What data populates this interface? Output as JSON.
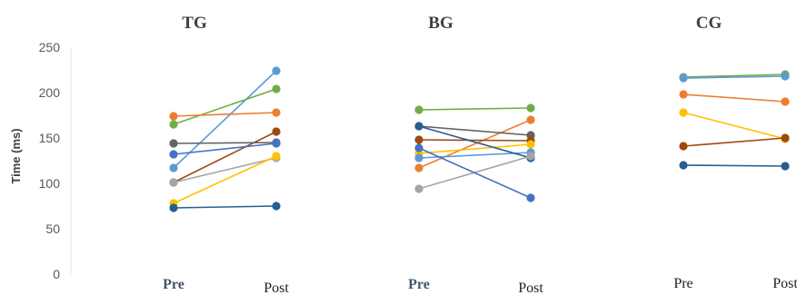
{
  "chart_data": {
    "type": "line",
    "ylabel": "Time (ms)",
    "ylim": [
      0,
      250
    ],
    "yticks": [
      "0",
      "50",
      "100",
      "150",
      "200",
      "250"
    ],
    "grid": false,
    "legend": "none",
    "panels": [
      {
        "title": "TG",
        "categories": [
          "Pre",
          "Post"
        ],
        "category_bold": [
          true,
          false
        ],
        "series": [
          {
            "color": "#5B9BD5",
            "values": [
              117,
              224
            ]
          },
          {
            "color": "#70AD47",
            "values": [
              165,
              204
            ]
          },
          {
            "color": "#ED7D31",
            "values": [
              174,
              178
            ]
          },
          {
            "color": "#9E480E",
            "values": [
              101,
              157
            ]
          },
          {
            "color": "#636363",
            "values": [
              144,
              145
            ]
          },
          {
            "color": "#4472C4",
            "values": [
              132,
              144
            ]
          },
          {
            "color": "#A5A5A5",
            "values": [
              101,
              128
            ]
          },
          {
            "color": "#FFC000",
            "values": [
              78,
              130
            ]
          },
          {
            "color": "#255E91",
            "values": [
              73,
              75
            ]
          }
        ]
      },
      {
        "title": "BG",
        "categories": [
          "Pre",
          "Post"
        ],
        "category_bold": [
          true,
          false
        ],
        "series": [
          {
            "color": "#70AD47",
            "values": [
              181,
              183
            ]
          },
          {
            "color": "#ED7D31",
            "values": [
              117,
              170
            ]
          },
          {
            "color": "#636363",
            "values": [
              163,
              153
            ]
          },
          {
            "color": "#9E480E",
            "values": [
              148,
              147
            ]
          },
          {
            "color": "#FFC000",
            "values": [
              133,
              143
            ]
          },
          {
            "color": "#5B9BD5",
            "values": [
              128,
              134
            ]
          },
          {
            "color": "#255E91",
            "values": [
              163,
              128
            ]
          },
          {
            "color": "#A5A5A5",
            "values": [
              94,
              130
            ]
          },
          {
            "color": "#4472C4",
            "values": [
              139,
              84
            ]
          }
        ]
      },
      {
        "title": "CG",
        "categories": [
          "Pre",
          "Post"
        ],
        "category_bold": [
          false,
          false
        ],
        "series": [
          {
            "color": "#70AD47",
            "values": [
              217,
              220
            ]
          },
          {
            "color": "#5B9BD5",
            "values": [
              216,
              218
            ]
          },
          {
            "color": "#ED7D31",
            "values": [
              198,
              190
            ]
          },
          {
            "color": "#FFC000",
            "values": [
              178,
              149
            ]
          },
          {
            "color": "#9E480E",
            "values": [
              141,
              150
            ]
          },
          {
            "color": "#255E91",
            "values": [
              120,
              119
            ]
          }
        ]
      }
    ]
  }
}
